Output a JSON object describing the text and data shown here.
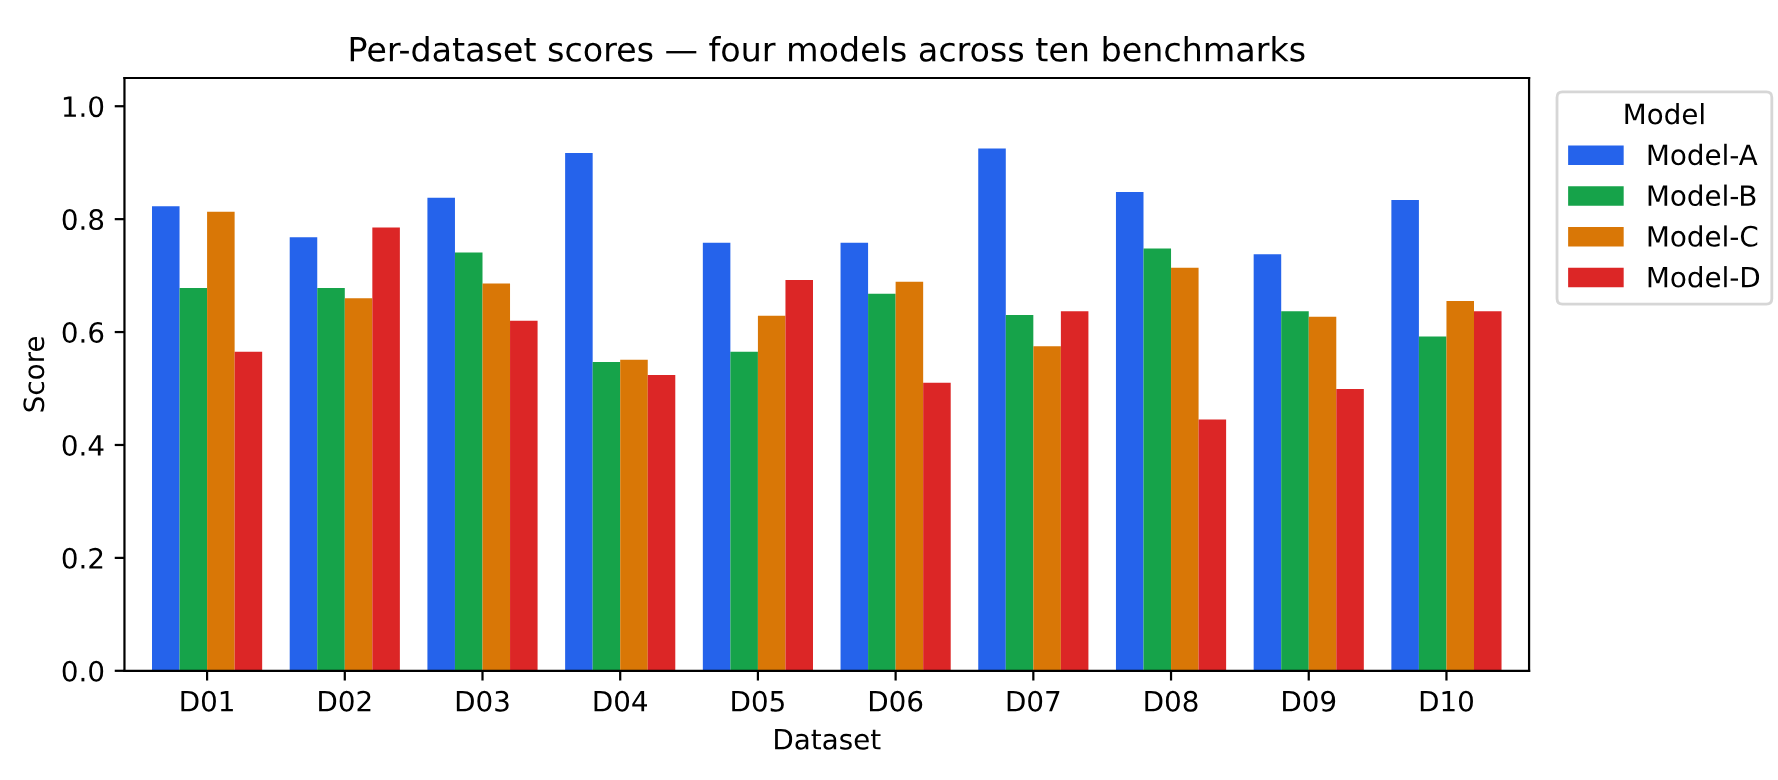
{
  "chart_data": {
    "type": "bar",
    "title": "Per-dataset scores — four models across ten benchmarks",
    "xlabel": "Dataset",
    "ylabel": "Score",
    "categories": [
      "D01",
      "D02",
      "D03",
      "D04",
      "D05",
      "D06",
      "D07",
      "D08",
      "D09",
      "D10"
    ],
    "series": [
      {
        "name": "Model-A",
        "color": "#2563eb",
        "values": [
          0.823,
          0.768,
          0.838,
          0.917,
          0.758,
          0.758,
          0.925,
          0.848,
          0.738,
          0.834
        ]
      },
      {
        "name": "Model-B",
        "color": "#16a34a",
        "values": [
          0.678,
          0.678,
          0.741,
          0.547,
          0.565,
          0.668,
          0.63,
          0.748,
          0.637,
          0.592
        ]
      },
      {
        "name": "Model-C",
        "color": "#d97706",
        "values": [
          0.813,
          0.66,
          0.686,
          0.551,
          0.629,
          0.689,
          0.575,
          0.714,
          0.627,
          0.655
        ]
      },
      {
        "name": "Model-D",
        "color": "#dc2626",
        "values": [
          0.565,
          0.785,
          0.62,
          0.524,
          0.692,
          0.51,
          0.637,
          0.445,
          0.499,
          0.637
        ]
      }
    ],
    "ylim": [
      0,
      1.05
    ],
    "yticks": [
      {
        "value": 0,
        "label": "0.0"
      },
      0.2,
      0.4,
      0.6,
      0.8,
      {
        "value": 1,
        "label": "1.0"
      }
    ],
    "legend": "top right",
    "legend_title": "Model",
    "grid": false
  }
}
